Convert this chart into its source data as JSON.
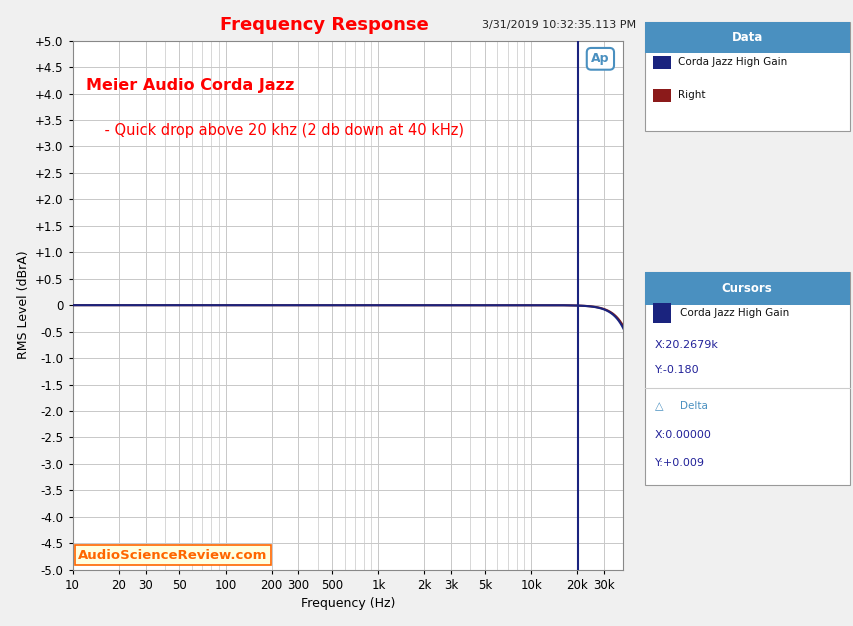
{
  "title": "Frequency Response",
  "title_color": "#FF0000",
  "datetime_text": "3/31/2019 10:32:35.113 PM",
  "annotation_line1": "Meier Audio Corda Jazz",
  "annotation_line2": "    - Quick drop above 20 khz (2 db down at 40 kHz)",
  "annotation_color": "#FF0000",
  "watermark": "AudioScienceReview.com",
  "watermark_color": "#FF6600",
  "watermark_bg": "#FFFFE0",
  "xlabel": "Frequency (Hz)",
  "ylabel": "RMS Level (dBrA)",
  "ylim": [
    -5.0,
    5.0
  ],
  "yticks": [
    -5.0,
    -4.5,
    -4.0,
    -3.5,
    -3.0,
    -2.5,
    -2.0,
    -1.5,
    -1.0,
    -0.5,
    0.0,
    0.5,
    1.0,
    1.5,
    2.0,
    2.5,
    3.0,
    3.5,
    4.0,
    4.5,
    5.0
  ],
  "ytick_labels": [
    "-5.0",
    "-4.5",
    "-4.0",
    "-3.5",
    "-3.0",
    "-2.5",
    "-2.0",
    "-1.5",
    "-1.0",
    "-0.5",
    "0",
    "+0.5",
    "+1.0",
    "+1.5",
    "+2.0",
    "+2.5",
    "+3.0",
    "+3.5",
    "+4.0",
    "+4.5",
    "+5.0"
  ],
  "xtick_positions": [
    10,
    20,
    30,
    50,
    100,
    200,
    300,
    500,
    1000,
    2000,
    3000,
    5000,
    10000,
    20000,
    30000
  ],
  "xtick_labels": [
    "10",
    "20",
    "30",
    "50",
    "100",
    "200",
    "300",
    "500",
    "1k",
    "2k",
    "3k",
    "5k",
    "10k",
    "20k",
    "30k"
  ],
  "xmin": 10,
  "xmax": 40000,
  "bg_color": "#F0F0F0",
  "plot_bg_color": "#FFFFFF",
  "grid_color": "#C8C8C8",
  "line1_color": "#1A237E",
  "line2_color": "#7B1A1A",
  "cursor_x": 20267.9,
  "cursor_color": "#1A237E",
  "legend_header_color": "#4A90C0",
  "legend_header_text": "Data",
  "legend_item1": "Corda Jazz High Gain",
  "legend_item2": "Right",
  "legend_color1": "#1A237E",
  "legend_color2": "#8B1A1A",
  "cursor_header": "Cursors",
  "cursor_label": "Corda Jazz High Gain",
  "cursor_x_label": "X:20.2679k",
  "cursor_y_label": "Y:-0.180",
  "delta_label": "Delta",
  "delta_x_label": "X:0.00000",
  "delta_y_label": "Y:+0.009",
  "ap_logo_color": "#4A90C0"
}
